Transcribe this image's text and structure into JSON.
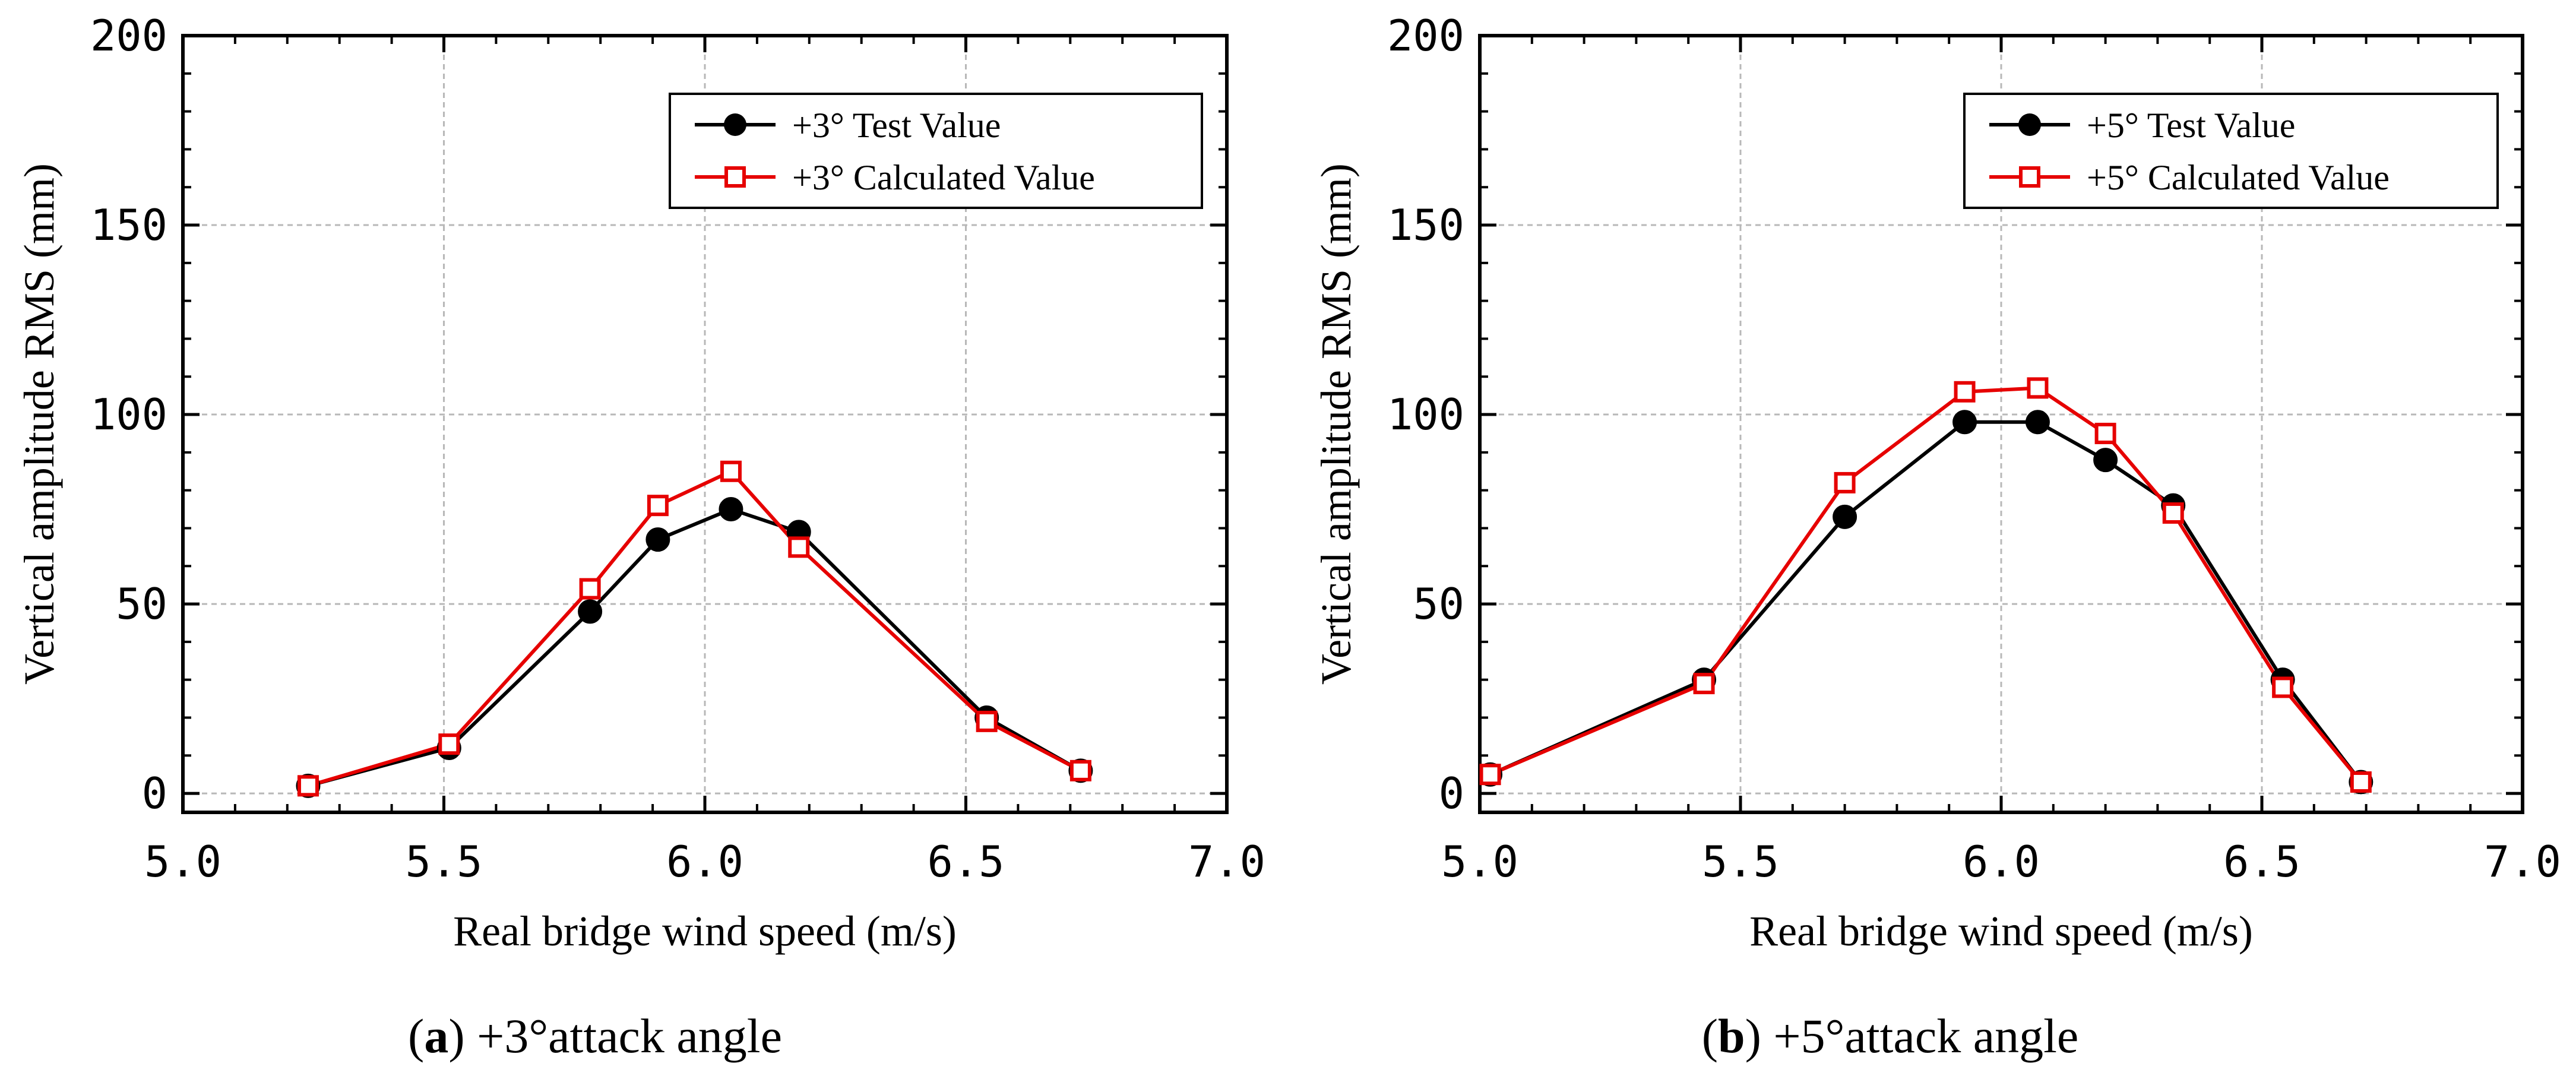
{
  "figure": {
    "captions": [
      {
        "letter": "a",
        "text": "+3°attack angle"
      },
      {
        "letter": "b",
        "text": "+5°attack angle"
      }
    ]
  },
  "chart_data": [
    {
      "type": "line",
      "title": "",
      "xlabel": "Real bridge wind speed (m/s)",
      "ylabel": "Vertical amplitude RMS (mm)",
      "xlim": [
        5.0,
        7.0
      ],
      "ylim": [
        -5,
        200
      ],
      "xticks": [
        5.0,
        5.5,
        6.0,
        6.5,
        7.0
      ],
      "xtick_labels": [
        "5.0",
        "5.5",
        "6.0",
        "6.5",
        "7.0"
      ],
      "yticks": [
        0,
        50,
        100,
        150,
        200
      ],
      "ytick_labels": [
        "0",
        "50",
        "100",
        "150",
        "200"
      ],
      "grid": true,
      "legend_position": "top-right",
      "series": [
        {
          "name": "+3°  Test Value",
          "color": "#000000",
          "marker": "filled-circle",
          "x": [
            5.24,
            5.51,
            5.78,
            5.91,
            6.05,
            6.18,
            6.54,
            6.72
          ],
          "y": [
            2,
            12,
            48,
            67,
            75,
            69,
            20,
            6
          ]
        },
        {
          "name": "+3°  Calculated Value",
          "color": "#e60000",
          "marker": "open-square",
          "x": [
            5.24,
            5.51,
            5.78,
            5.91,
            6.05,
            6.18,
            6.54,
            6.72
          ],
          "y": [
            2,
            13,
            54,
            76,
            85,
            65,
            19,
            6
          ]
        }
      ]
    },
    {
      "type": "line",
      "title": "",
      "xlabel": "Real bridge wind speed (m/s)",
      "ylabel": "Vertical amplitude RMS (mm)",
      "xlim": [
        5.0,
        7.0
      ],
      "ylim": [
        -5,
        200
      ],
      "xticks": [
        5.0,
        5.5,
        6.0,
        6.5,
        7.0
      ],
      "xtick_labels": [
        "5.0",
        "5.5",
        "6.0",
        "6.5",
        "7.0"
      ],
      "yticks": [
        0,
        50,
        100,
        150,
        200
      ],
      "ytick_labels": [
        "0",
        "50",
        "100",
        "150",
        "200"
      ],
      "grid": true,
      "legend_position": "top-right",
      "series": [
        {
          "name": "+5°  Test Value",
          "color": "#000000",
          "marker": "filled-circle",
          "x": [
            5.02,
            5.43,
            5.7,
            5.93,
            6.07,
            6.2,
            6.33,
            6.54,
            6.69
          ],
          "y": [
            5,
            30,
            73,
            98,
            98,
            88,
            76,
            30,
            3
          ]
        },
        {
          "name": "+5°  Calculated Value",
          "color": "#e60000",
          "marker": "open-square",
          "x": [
            5.02,
            5.43,
            5.7,
            5.93,
            6.07,
            6.2,
            6.33,
            6.54,
            6.69
          ],
          "y": [
            5,
            29,
            82,
            106,
            107,
            95,
            74,
            28,
            3
          ]
        }
      ]
    }
  ]
}
